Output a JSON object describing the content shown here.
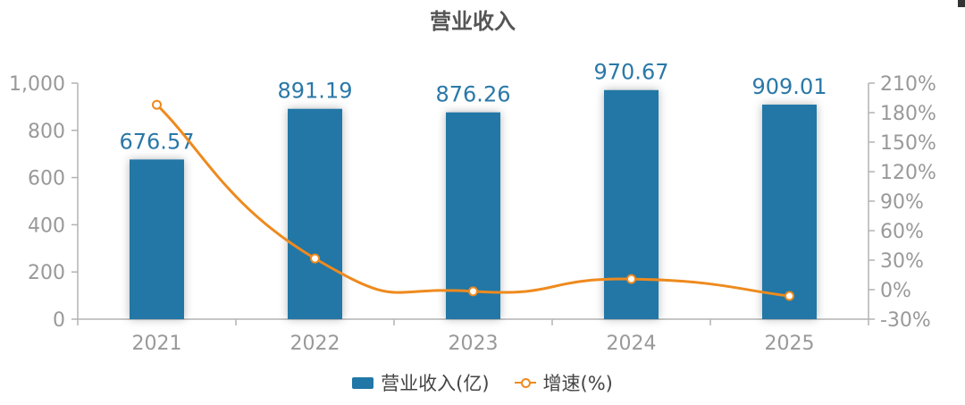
{
  "title": "营业收入",
  "colors": {
    "bar": "#2177A6",
    "line": "#EE8A1E",
    "axis": "#B3B3B3",
    "tick": "#999999",
    "label": "#2A78A8",
    "title": "#555555"
  },
  "legend": {
    "bar_label": "营业收入(亿)",
    "line_label": "增速(%)"
  },
  "chart_data": {
    "type": "bar",
    "title": "营业收入",
    "categories": [
      "2021",
      "2022",
      "2023",
      "2024",
      "2025"
    ],
    "series": [
      {
        "name": "营业收入(亿)",
        "type": "bar",
        "axis": "left",
        "values": [
          676.57,
          891.19,
          876.26,
          970.67,
          909.01
        ],
        "data_labels": [
          "676.57",
          "891.19",
          "876.26",
          "970.67",
          "909.01"
        ]
      },
      {
        "name": "增速(%)",
        "type": "line",
        "axis": "right",
        "smooth": true,
        "values": [
          188,
          31.7,
          -1.7,
          10.8,
          -6.4
        ]
      }
    ],
    "y_left": {
      "min": 0,
      "max": 1000,
      "ticks": [
        0,
        200,
        400,
        600,
        800,
        1000
      ],
      "tick_labels": [
        "0",
        "200",
        "400",
        "600",
        "800",
        "1,000"
      ]
    },
    "y_right": {
      "min": -30,
      "max": 210,
      "ticks": [
        -30,
        0,
        30,
        60,
        90,
        120,
        150,
        180,
        210
      ],
      "tick_labels": [
        "-30%",
        "0%",
        "30%",
        "60%",
        "90%",
        "120%",
        "150%",
        "180%",
        "210%"
      ]
    },
    "grid": false,
    "legend_position": "bottom"
  }
}
